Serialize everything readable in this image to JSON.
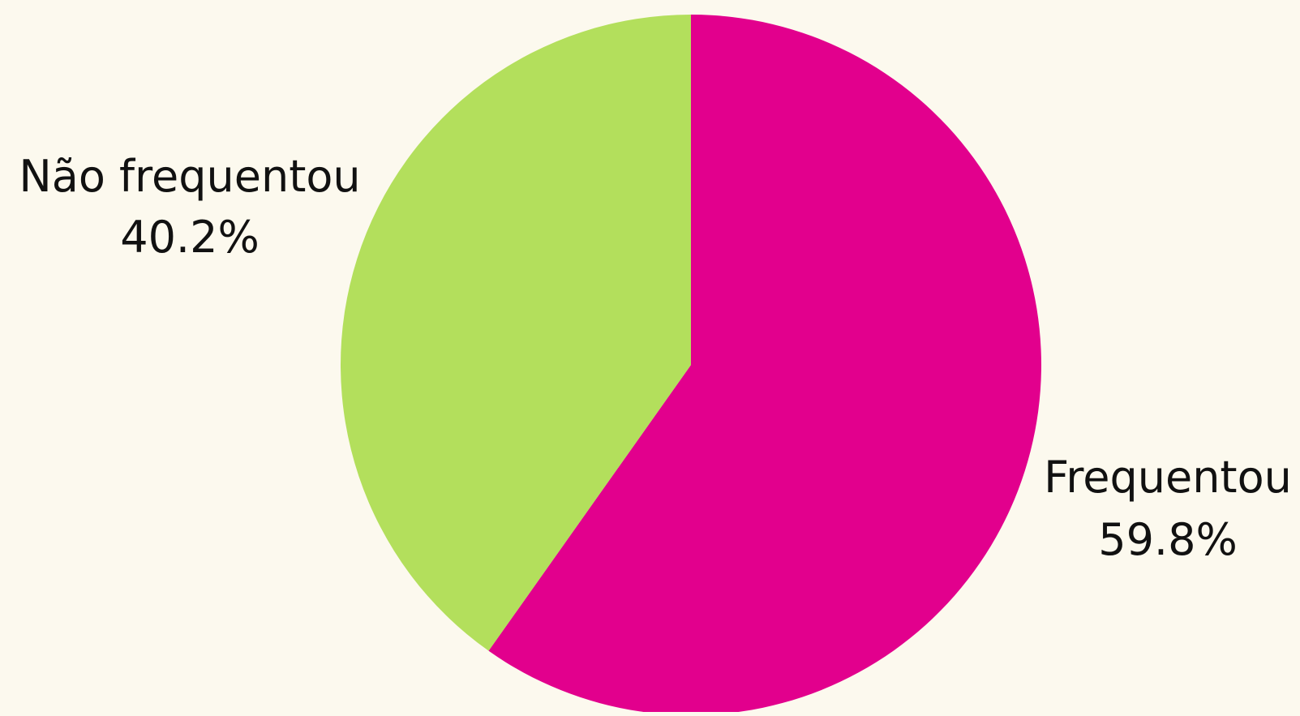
{
  "chart_data": {
    "type": "pie",
    "start_angle": "12 o'clock",
    "direction": "clockwise",
    "slices": [
      {
        "label": "Frequentou",
        "percent_label": "59.8%",
        "value": 59.8,
        "color": "#e2008d"
      },
      {
        "label": "Não frequentou",
        "percent_label": "40.2%",
        "value": 40.2,
        "color": "#b3df5c"
      }
    ],
    "legend": "none",
    "label_placement": "outside"
  }
}
